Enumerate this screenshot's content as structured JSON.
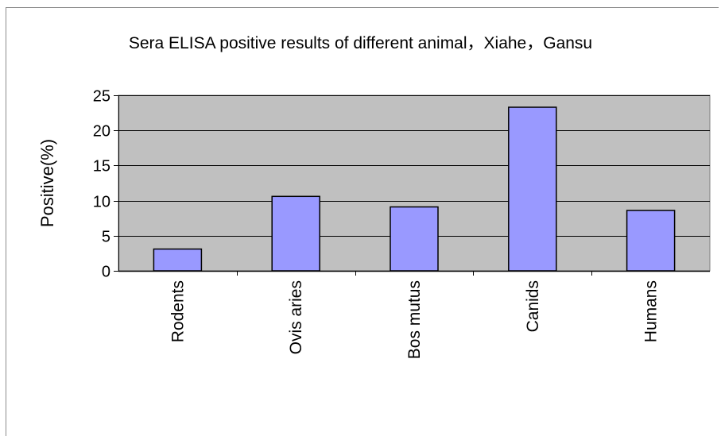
{
  "chart_data": {
    "type": "bar",
    "title": "Sera ELISA positive results of different animal，Xiahe，Gansu",
    "xlabel": "",
    "ylabel": "Positive(%)",
    "categories": [
      "Rodents",
      "Ovis aries",
      "Bos mutus",
      "Canids",
      "Humans"
    ],
    "values": [
      3.1,
      10.6,
      9.1,
      23.3,
      8.6
    ],
    "ylim": [
      0,
      25
    ],
    "yticks": [
      "0",
      "5",
      "10",
      "15",
      "20",
      "25"
    ],
    "grid": true,
    "legend": "none",
    "colors": {
      "bar": "#9999ff",
      "plot_background": "#c0c0c0",
      "gridline": "#000000"
    }
  }
}
